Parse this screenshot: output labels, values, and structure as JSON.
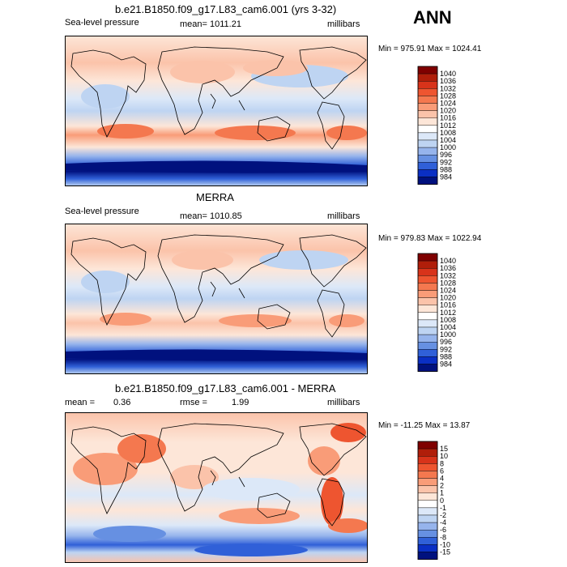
{
  "season": "ANN",
  "panels": [
    {
      "id": "p1",
      "title": "b.e21.B1850.f09_g17.L83_cam6.001 (yrs 3-32)",
      "variable": "Sea-level pressure",
      "mean_text": "mean= 1011.21",
      "units": "millibars",
      "minmax": "Min = 975.91 Max = 1024.41"
    },
    {
      "id": "p2",
      "title": "MERRA",
      "variable": "Sea-level pressure",
      "mean_text": "mean= 1010.85",
      "units": "millibars",
      "minmax": "Min = 979.83 Max = 1022.94"
    },
    {
      "id": "p3",
      "title": "b.e21.B1850.f09_g17.L83_cam6.001 - MERRA",
      "mean_label": "mean =",
      "mean_value": "0.36",
      "rmse_label": "rmse =",
      "rmse_value": "1.99",
      "units": "millibars",
      "minmax": "Min = -11.25 Max =  13.87"
    }
  ],
  "colorbars": {
    "slp": {
      "labels": [
        "1040",
        "1036",
        "1032",
        "1028",
        "1024",
        "1020",
        "1016",
        "1012",
        "1008",
        "1004",
        "1000",
        "996",
        "992",
        "988",
        "984"
      ],
      "colors": [
        "#7f0000",
        "#b01e0a",
        "#d8331a",
        "#ee5530",
        "#f4784f",
        "#f99c78",
        "#fbc3aa",
        "#fde6d8",
        "#ffffff",
        "#dce8f8",
        "#bed4f2",
        "#96b4ec",
        "#6690e2",
        "#3060d8",
        "#0a2fc4",
        "#00117e"
      ]
    },
    "diff": {
      "labels": [
        "15",
        "10",
        "8",
        "6",
        "4",
        "2",
        "1",
        "0",
        "-1",
        "-2",
        "-4",
        "-6",
        "-8",
        "-10",
        "-15"
      ],
      "colors": [
        "#7f0000",
        "#b01e0a",
        "#d8331a",
        "#ee5530",
        "#f4784f",
        "#f99c78",
        "#fbc3aa",
        "#fde6d8",
        "#ffffff",
        "#dce8f8",
        "#bed4f2",
        "#96b4ec",
        "#6690e2",
        "#3060d8",
        "#0a2fc4",
        "#00117e"
      ]
    }
  },
  "chart_data": [
    {
      "type": "heatmap",
      "title": "b.e21.B1850.f09_g17.L83_cam6.001 (yrs 3-32)",
      "variable": "Sea-level pressure",
      "units": "millibars",
      "mean": 1011.21,
      "min": 975.91,
      "max": 1024.41,
      "contour_levels": [
        984,
        988,
        992,
        996,
        1000,
        1004,
        1008,
        1012,
        1016,
        1020,
        1024,
        1028,
        1032,
        1036,
        1040
      ]
    },
    {
      "type": "heatmap",
      "title": "MERRA",
      "variable": "Sea-level pressure",
      "units": "millibars",
      "mean": 1010.85,
      "min": 979.83,
      "max": 1022.94,
      "contour_levels": [
        984,
        988,
        992,
        996,
        1000,
        1004,
        1008,
        1012,
        1016,
        1020,
        1024,
        1028,
        1032,
        1036,
        1040
      ]
    },
    {
      "type": "heatmap",
      "title": "b.e21.B1850.f09_g17.L83_cam6.001 - MERRA",
      "units": "millibars",
      "mean": 0.36,
      "rmse": 1.99,
      "min": -11.25,
      "max": 13.87,
      "contour_levels": [
        -15,
        -10,
        -8,
        -6,
        -4,
        -2,
        -1,
        0,
        1,
        2,
        4,
        6,
        8,
        10,
        15
      ]
    }
  ]
}
